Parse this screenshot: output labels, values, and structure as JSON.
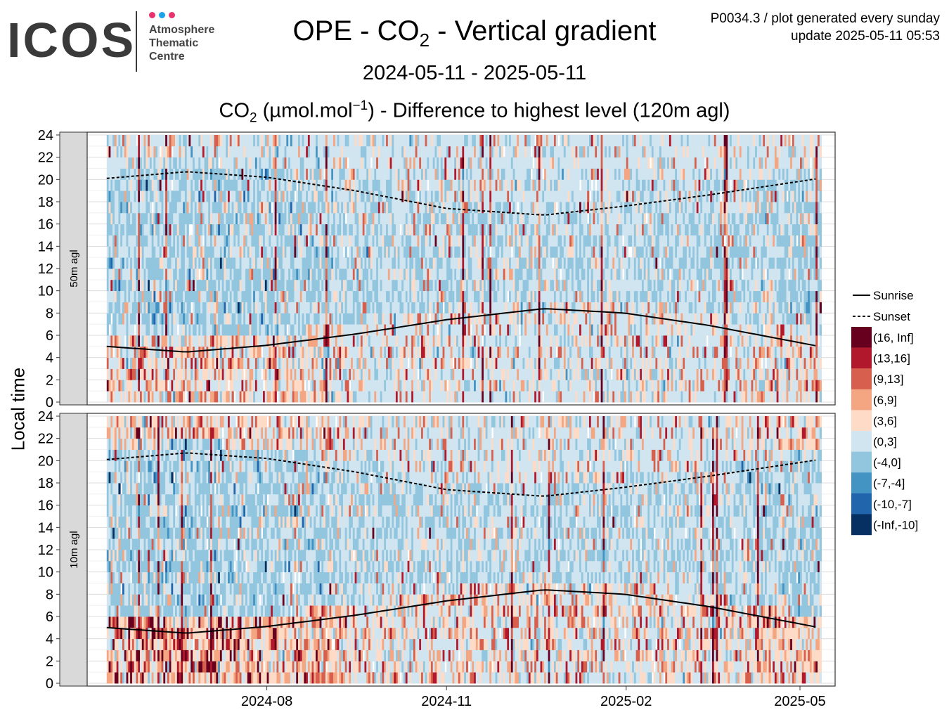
{
  "logo": {
    "wordmark": "ICOS",
    "lines": [
      "Atmosphere",
      "Thematic",
      "Centre"
    ],
    "dot_colors": [
      "#e8336e",
      "#1aa3e8",
      "#e8336e"
    ]
  },
  "title": {
    "prefix": "OPE - CO",
    "sub": "2",
    "suffix": " - Vertical gradient"
  },
  "period": "2024-05-11 - 2025-05-11",
  "subtitle": {
    "p1": "CO",
    "p1_sub": "2",
    "p2": " (µmol.mol",
    "p2_sup": "−1",
    "p3": ") - Difference to highest level (120m agl)"
  },
  "info": {
    "line1": "P0034.3 / plot generated every sunday",
    "line2": "update  2025-05-11 05:53"
  },
  "chart_data": {
    "type": "heatmap",
    "ylabel": "Local time",
    "x_range": [
      "2024-05-11",
      "2025-05-11"
    ],
    "x_ticks": [
      "2024-08",
      "2024-11",
      "2025-02",
      "2025-05"
    ],
    "y_range": [
      0,
      24
    ],
    "y_ticks": [
      "0",
      "2",
      "4",
      "6",
      "8",
      "10",
      "12",
      "14",
      "16",
      "18",
      "20",
      "22",
      "24"
    ],
    "grid": true,
    "panels": [
      "50m agl",
      "10m agl"
    ],
    "legend_position": "right",
    "legend": {
      "lines": [
        {
          "name": "Sunrise",
          "style": "solid"
        },
        {
          "name": "Sunset",
          "style": "dashed"
        }
      ],
      "bins": [
        {
          "label": "(16, Inf]",
          "color": "#67001f"
        },
        {
          "label": "(13,16]",
          "color": "#b2182b"
        },
        {
          "label": "(9,13]",
          "color": "#d6604d"
        },
        {
          "label": "(6,9]",
          "color": "#f4a582"
        },
        {
          "label": "(3,6]",
          "color": "#fddbc7"
        },
        {
          "label": "(0,3]",
          "color": "#d1e5f0"
        },
        {
          "label": "(-4,0]",
          "color": "#92c5de"
        },
        {
          "label": "(-7,-4]",
          "color": "#4393c3"
        },
        {
          "label": "(-10,-7]",
          "color": "#2166ac"
        },
        {
          "label": "(-Inf,-10]",
          "color": "#053061"
        }
      ]
    },
    "sunrise": [
      {
        "date": "2024-05-11",
        "hour": 5.0
      },
      {
        "date": "2024-06-21",
        "hour": 4.5
      },
      {
        "date": "2024-08-01",
        "hour": 5.1
      },
      {
        "date": "2024-09-15",
        "hour": 6.1
      },
      {
        "date": "2024-11-01",
        "hour": 7.4
      },
      {
        "date": "2024-12-21",
        "hour": 8.4
      },
      {
        "date": "2025-01-31",
        "hour": 8.0
      },
      {
        "date": "2025-03-15",
        "hour": 6.9
      },
      {
        "date": "2025-05-11",
        "hour": 5.0
      }
    ],
    "sunset": [
      {
        "date": "2024-05-11",
        "hour": 20.1
      },
      {
        "date": "2024-06-21",
        "hour": 20.7
      },
      {
        "date": "2024-08-01",
        "hour": 20.2
      },
      {
        "date": "2024-09-15",
        "hour": 19.0
      },
      {
        "date": "2024-11-01",
        "hour": 17.4
      },
      {
        "date": "2024-12-21",
        "hour": 16.8
      },
      {
        "date": "2025-01-31",
        "hour": 17.6
      },
      {
        "date": "2025-03-15",
        "hour": 18.6
      },
      {
        "date": "2025-05-11",
        "hour": 20.1
      }
    ]
  }
}
